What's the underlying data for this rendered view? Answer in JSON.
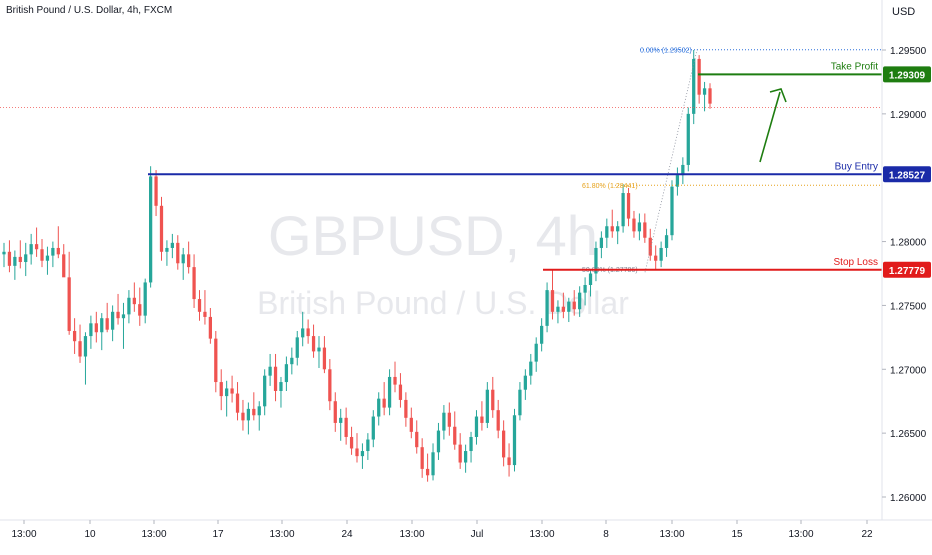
{
  "header": {
    "symbol_title": "British Pound / U.S. Dollar, 4h, FXCM",
    "currency": "USD"
  },
  "watermark": {
    "ticker": "GBPUSD, 4h",
    "name": "British Pound / U.S. Dollar"
  },
  "colors": {
    "up": "#26a69a",
    "down": "#ef5350",
    "buy_entry": "#1a2aa8",
    "take_profit": "#1e7d10",
    "stop_loss": "#e11b1b",
    "fib_top": "#2a6fdb",
    "fib_mid": "#e6a11a"
  },
  "chart_data": {
    "type": "candlestick",
    "symbol": "GBPUSD",
    "timeframe": "4h",
    "ylim": [
      1.2575,
      1.2978
    ],
    "y_ticks": [
      "1.29500",
      "1.29000",
      "1.28000",
      "1.27500",
      "1.27000",
      "1.26500",
      "1.26000"
    ],
    "x_ticks": [
      "13:00",
      "10",
      "13:00",
      "17",
      "13:00",
      "24",
      "13:00",
      "Jul",
      "13:00",
      "8",
      "13:00",
      "15",
      "13:00",
      "22"
    ],
    "levels": [
      {
        "name": "Take Profit",
        "value": 1.29309,
        "label": "1.29309"
      },
      {
        "name": "Buy Entry",
        "value": 1.28527,
        "label": "1.28527"
      },
      {
        "name": "Stop Loss",
        "value": 1.27779,
        "label": "1.27779"
      }
    ],
    "fib_levels": [
      {
        "label": "0.00% (1.29502)",
        "value": 1.29502
      },
      {
        "label": "61.80% (1.28441)",
        "value": 1.28441
      },
      {
        "label": "50.00% (1.27786)",
        "value": 1.27786
      }
    ],
    "current_price_line": 1.2905,
    "candles": [
      [
        1.279,
        1.2799,
        1.278,
        1.2792
      ],
      [
        1.2792,
        1.2801,
        1.2776,
        1.2781
      ],
      [
        1.2781,
        1.2793,
        1.277,
        1.2788
      ],
      [
        1.2788,
        1.2801,
        1.2779,
        1.2784
      ],
      [
        1.2784,
        1.2799,
        1.2773,
        1.279
      ],
      [
        1.279,
        1.2806,
        1.2782,
        1.2798
      ],
      [
        1.2798,
        1.2811,
        1.2788,
        1.2794
      ],
      [
        1.2794,
        1.2802,
        1.278,
        1.2785
      ],
      [
        1.2785,
        1.2796,
        1.2774,
        1.2789
      ],
      [
        1.2789,
        1.28,
        1.278,
        1.2795
      ],
      [
        1.2795,
        1.2812,
        1.2787,
        1.279
      ],
      [
        1.279,
        1.2798,
        1.2774,
        1.2772
      ],
      [
        1.2772,
        1.2792,
        1.2727,
        1.273
      ],
      [
        1.273,
        1.274,
        1.2712,
        1.2722
      ],
      [
        1.2722,
        1.2735,
        1.2705,
        1.271
      ],
      [
        1.271,
        1.2729,
        1.2688,
        1.2726
      ],
      [
        1.2726,
        1.2742,
        1.2716,
        1.2736
      ],
      [
        1.2736,
        1.2745,
        1.2721,
        1.2729
      ],
      [
        1.2729,
        1.2744,
        1.2715,
        1.274
      ],
      [
        1.274,
        1.2752,
        1.2729,
        1.2731
      ],
      [
        1.2731,
        1.275,
        1.2722,
        1.2745
      ],
      [
        1.2745,
        1.2759,
        1.2735,
        1.274
      ],
      [
        1.274,
        1.2752,
        1.2716,
        1.2743
      ],
      [
        1.2743,
        1.2762,
        1.2736,
        1.2756
      ],
      [
        1.2756,
        1.2768,
        1.2745,
        1.2751
      ],
      [
        1.2751,
        1.2764,
        1.2734,
        1.2742
      ],
      [
        1.2742,
        1.2771,
        1.2736,
        1.2768
      ],
      [
        1.2768,
        1.2859,
        1.2764,
        1.2851
      ],
      [
        1.2851,
        1.2856,
        1.282,
        1.2828
      ],
      [
        1.2828,
        1.2835,
        1.2785,
        1.2792
      ],
      [
        1.2792,
        1.2801,
        1.2781,
        1.2795
      ],
      [
        1.2795,
        1.2806,
        1.2787,
        1.2799
      ],
      [
        1.2799,
        1.2805,
        1.2778,
        1.2783
      ],
      [
        1.2783,
        1.2795,
        1.277,
        1.279
      ],
      [
        1.279,
        1.28,
        1.2775,
        1.278
      ],
      [
        1.278,
        1.279,
        1.2748,
        1.2755
      ],
      [
        1.2755,
        1.2762,
        1.2738,
        1.2745
      ],
      [
        1.2745,
        1.2762,
        1.2735,
        1.2741
      ],
      [
        1.2741,
        1.2748,
        1.272,
        1.2724
      ],
      [
        1.2724,
        1.273,
        1.2682,
        1.269
      ],
      [
        1.269,
        1.27,
        1.2668,
        1.2679
      ],
      [
        1.2679,
        1.2691,
        1.2663,
        1.2685
      ],
      [
        1.2685,
        1.2695,
        1.2674,
        1.2681
      ],
      [
        1.2681,
        1.269,
        1.266,
        1.2666
      ],
      [
        1.2666,
        1.2676,
        1.2652,
        1.266
      ],
      [
        1.266,
        1.2674,
        1.2649,
        1.2669
      ],
      [
        1.2669,
        1.2682,
        1.266,
        1.2664
      ],
      [
        1.2664,
        1.2675,
        1.2652,
        1.2671
      ],
      [
        1.2671,
        1.27,
        1.2664,
        1.2695
      ],
      [
        1.2695,
        1.2712,
        1.2687,
        1.2702
      ],
      [
        1.2702,
        1.2712,
        1.2675,
        1.2683
      ],
      [
        1.2683,
        1.2694,
        1.267,
        1.269
      ],
      [
        1.269,
        1.271,
        1.2683,
        1.2704
      ],
      [
        1.2704,
        1.2717,
        1.2696,
        1.2709
      ],
      [
        1.2709,
        1.273,
        1.2703,
        1.2725
      ],
      [
        1.2725,
        1.2745,
        1.2718,
        1.2732
      ],
      [
        1.2732,
        1.2739,
        1.272,
        1.2726
      ],
      [
        1.2726,
        1.2735,
        1.2709,
        1.2714
      ],
      [
        1.2714,
        1.2726,
        1.2701,
        1.2717
      ],
      [
        1.2717,
        1.2726,
        1.2697,
        1.27
      ],
      [
        1.27,
        1.2708,
        1.2668,
        1.2675
      ],
      [
        1.2675,
        1.2682,
        1.2651,
        1.2658
      ],
      [
        1.2658,
        1.2669,
        1.2644,
        1.2662
      ],
      [
        1.2662,
        1.267,
        1.2641,
        1.2647
      ],
      [
        1.2647,
        1.2655,
        1.2633,
        1.2638
      ],
      [
        1.2638,
        1.265,
        1.2627,
        1.2632
      ],
      [
        1.2632,
        1.2642,
        1.2622,
        1.2636
      ],
      [
        1.2636,
        1.265,
        1.2629,
        1.2645
      ],
      [
        1.2645,
        1.2668,
        1.2639,
        1.2663
      ],
      [
        1.2663,
        1.2682,
        1.2656,
        1.2677
      ],
      [
        1.2677,
        1.269,
        1.2664,
        1.267
      ],
      [
        1.267,
        1.27,
        1.2664,
        1.2694
      ],
      [
        1.2694,
        1.2706,
        1.2682,
        1.2688
      ],
      [
        1.2688,
        1.2697,
        1.267,
        1.2676
      ],
      [
        1.2676,
        1.2682,
        1.2655,
        1.2662
      ],
      [
        1.2662,
        1.267,
        1.2646,
        1.2651
      ],
      [
        1.2651,
        1.266,
        1.2634,
        1.2639
      ],
      [
        1.2639,
        1.2646,
        1.2615,
        1.2622
      ],
      [
        1.2622,
        1.2634,
        1.2612,
        1.2617
      ],
      [
        1.2617,
        1.2642,
        1.2613,
        1.2635
      ],
      [
        1.2635,
        1.2658,
        1.2629,
        1.2652
      ],
      [
        1.2652,
        1.2672,
        1.2645,
        1.2666
      ],
      [
        1.2666,
        1.2674,
        1.2648,
        1.2655
      ],
      [
        1.2655,
        1.2667,
        1.2637,
        1.2641
      ],
      [
        1.2641,
        1.265,
        1.2622,
        1.2627
      ],
      [
        1.2627,
        1.2641,
        1.2619,
        1.2636
      ],
      [
        1.2636,
        1.2651,
        1.2627,
        1.2647
      ],
      [
        1.2647,
        1.2668,
        1.2641,
        1.2663
      ],
      [
        1.2663,
        1.2675,
        1.2652,
        1.2658
      ],
      [
        1.2658,
        1.269,
        1.2654,
        1.2684
      ],
      [
        1.2684,
        1.2694,
        1.2662,
        1.2668
      ],
      [
        1.2668,
        1.2676,
        1.2646,
        1.2652
      ],
      [
        1.2652,
        1.266,
        1.2624,
        1.2631
      ],
      [
        1.2631,
        1.2642,
        1.2616,
        1.2625
      ],
      [
        1.2625,
        1.2669,
        1.262,
        1.2664
      ],
      [
        1.2664,
        1.269,
        1.266,
        1.2684
      ],
      [
        1.2684,
        1.27,
        1.2676,
        1.2695
      ],
      [
        1.2695,
        1.2712,
        1.2688,
        1.2706
      ],
      [
        1.2706,
        1.2725,
        1.2698,
        1.272
      ],
      [
        1.272,
        1.274,
        1.2714,
        1.2734
      ],
      [
        1.2734,
        1.2768,
        1.2729,
        1.2762
      ],
      [
        1.2762,
        1.2778,
        1.2739,
        1.2745
      ],
      [
        1.2745,
        1.2754,
        1.2736,
        1.2749
      ],
      [
        1.2749,
        1.276,
        1.274,
        1.2745
      ],
      [
        1.2745,
        1.2756,
        1.2737,
        1.2753
      ],
      [
        1.2753,
        1.2762,
        1.2742,
        1.2747
      ],
      [
        1.2747,
        1.2765,
        1.2741,
        1.276
      ],
      [
        1.276,
        1.2772,
        1.275,
        1.2766
      ],
      [
        1.2766,
        1.2778,
        1.2757,
        1.2775
      ],
      [
        1.2775,
        1.28,
        1.2769,
        1.2795
      ],
      [
        1.2795,
        1.2808,
        1.2787,
        1.2803
      ],
      [
        1.2803,
        1.2818,
        1.2795,
        1.2812
      ],
      [
        1.2812,
        1.2825,
        1.2803,
        1.2808
      ],
      [
        1.2808,
        1.2816,
        1.2798,
        1.2812
      ],
      [
        1.2812,
        1.2845,
        1.2807,
        1.2838
      ],
      [
        1.2838,
        1.2842,
        1.2812,
        1.2818
      ],
      [
        1.2818,
        1.2824,
        1.2803,
        1.2808
      ],
      [
        1.2808,
        1.2822,
        1.2801,
        1.2815
      ],
      [
        1.2815,
        1.2822,
        1.2799,
        1.2803
      ],
      [
        1.2803,
        1.281,
        1.2785,
        1.2789
      ],
      [
        1.2789,
        1.2797,
        1.2778,
        1.2785
      ],
      [
        1.2785,
        1.28,
        1.278,
        1.2795
      ],
      [
        1.2795,
        1.281,
        1.2788,
        1.2805
      ],
      [
        1.2805,
        1.2848,
        1.2801,
        1.2843
      ],
      [
        1.2843,
        1.2858,
        1.2836,
        1.2852
      ],
      [
        1.2852,
        1.2866,
        1.2845,
        1.286
      ],
      [
        1.286,
        1.2905,
        1.2855,
        1.29
      ],
      [
        1.29,
        1.295,
        1.2892,
        1.2943
      ],
      [
        1.2943,
        1.2946,
        1.2908,
        1.2915
      ],
      [
        1.2915,
        1.2925,
        1.2902,
        1.292
      ],
      [
        1.292,
        1.2924,
        1.2904,
        1.2908
      ]
    ]
  }
}
